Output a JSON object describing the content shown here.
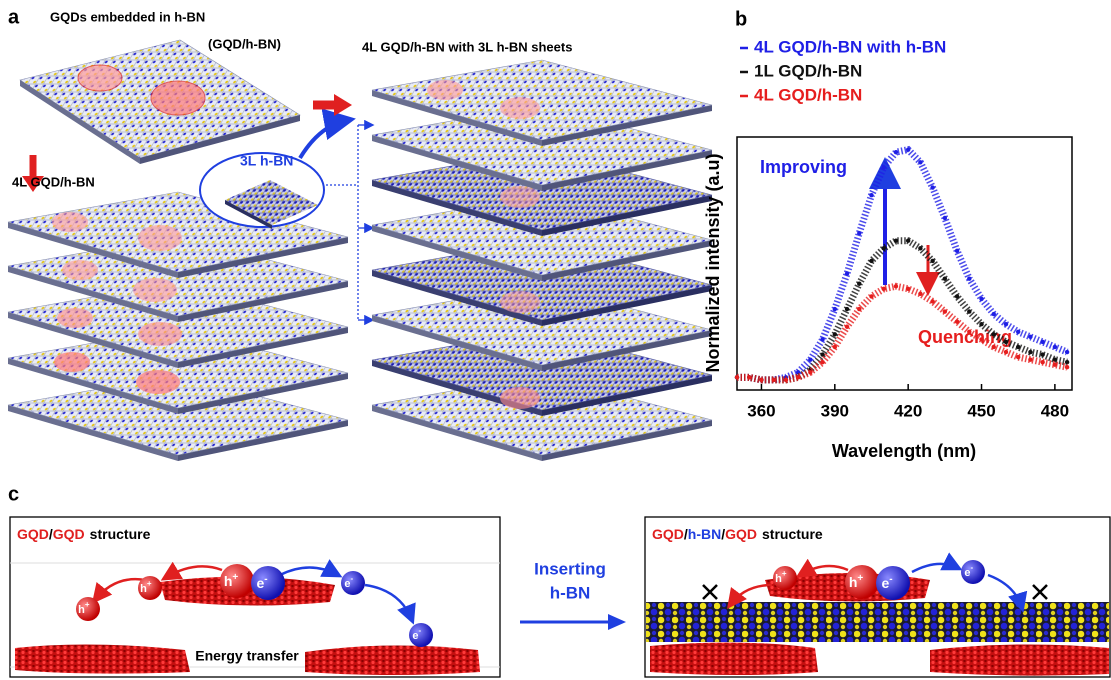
{
  "panel_a": {
    "label": "a",
    "top_title": "GQDs embedded in h-BN",
    "top_subtitle": "(GQD/h-BN)",
    "left_title": "4L GQD/h-BN",
    "middle_label": "3L h-BN",
    "right_title": "4L GQD/h-BN with 3L h-BN sheets"
  },
  "chart_data": {
    "type": "scatter",
    "panel_label": "b",
    "x_label": "Wavelength (nm)",
    "y_label": "Normalized intensity (a.u)",
    "x": [
      350,
      355,
      360,
      365,
      370,
      375,
      380,
      385,
      390,
      395,
      400,
      405,
      410,
      415,
      420,
      425,
      430,
      435,
      440,
      445,
      450,
      455,
      460,
      465,
      470,
      475,
      480,
      485
    ],
    "series": [
      {
        "name": "4L GQD/h-BN with h-BN",
        "color": "#1f1fe6",
        "values": [
          0.05,
          0.05,
          0.04,
          0.04,
          0.05,
          0.07,
          0.12,
          0.2,
          0.32,
          0.46,
          0.62,
          0.77,
          0.88,
          0.94,
          0.95,
          0.9,
          0.8,
          0.68,
          0.55,
          0.44,
          0.36,
          0.3,
          0.26,
          0.23,
          0.21,
          0.19,
          0.17,
          0.15
        ]
      },
      {
        "name": "1L GQD/h-BN",
        "color": "#111111",
        "values": [
          0.05,
          0.05,
          0.04,
          0.04,
          0.04,
          0.05,
          0.08,
          0.14,
          0.22,
          0.32,
          0.42,
          0.51,
          0.56,
          0.59,
          0.59,
          0.56,
          0.51,
          0.44,
          0.37,
          0.31,
          0.26,
          0.22,
          0.19,
          0.17,
          0.15,
          0.14,
          0.12,
          0.11
        ]
      },
      {
        "name": "4L GQD/h-BN",
        "color": "#e61e1e",
        "values": [
          0.05,
          0.05,
          0.04,
          0.04,
          0.04,
          0.05,
          0.07,
          0.11,
          0.17,
          0.25,
          0.32,
          0.37,
          0.4,
          0.41,
          0.4,
          0.38,
          0.35,
          0.31,
          0.27,
          0.23,
          0.2,
          0.17,
          0.15,
          0.13,
          0.12,
          0.11,
          0.1,
          0.09
        ]
      }
    ],
    "xlim": [
      350,
      487
    ],
    "xticks": [
      360,
      390,
      420,
      450,
      480
    ],
    "ylim": [
      0,
      1
    ],
    "annotations": [
      "Improving",
      "Quenching"
    ]
  },
  "panel_c": {
    "label": "c",
    "left_title": [
      "GQD",
      "/",
      "GQD",
      "structure"
    ],
    "right_title": [
      "GQD",
      "/",
      "h-BN",
      "/",
      "GQD",
      "structure"
    ],
    "hole": "h",
    "hole_charge": "+",
    "electron": "e",
    "electron_charge": "-",
    "energy_transfer": "Energy transfer",
    "arrow_label": [
      "Inserting",
      "h-BN"
    ]
  }
}
